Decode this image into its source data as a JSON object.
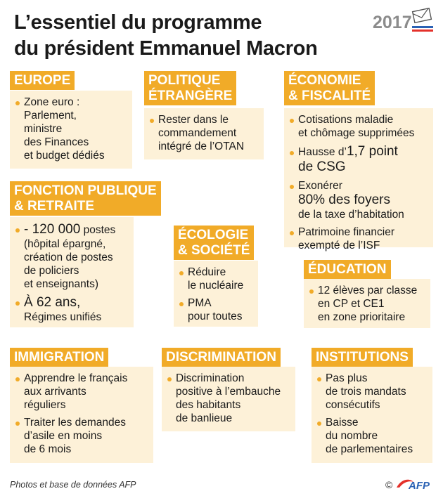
{
  "title": {
    "line1": "L’essentiel du programme",
    "line2": "du président Emmanuel Macron"
  },
  "logo": {
    "year": "2017"
  },
  "europe": {
    "header": "EUROPE",
    "items": [
      "Zone euro :",
      "Parlement,",
      "ministre",
      "des Finances",
      "et budget dédiés"
    ]
  },
  "politique": {
    "header_l1": "POLITIQUE",
    "header_l2": "ÉTRANGÈRE",
    "items": [
      "Rester dans le",
      "commandement",
      "intégré de l’OTAN"
    ]
  },
  "economie": {
    "header_l1": "ÉCONOMIE",
    "header_l2": "& FISCALITÉ",
    "item1": [
      "Cotisations maladie",
      "et chômage supprimées"
    ],
    "item2_small": "Hausse d’",
    "item2_big": "1,7 point",
    "item2_l2": "de CSG",
    "item3_l1": "Exonérer",
    "item3_big": "80% des foyers",
    "item3_l3": "de la taxe d’habitation",
    "item4": [
      "Patrimoine financier",
      "exempté de l’ISF"
    ]
  },
  "fonction": {
    "header_l1": "FONCTION PUBLIQUE",
    "header_l2": "& RETRAITE",
    "item1_big": "- 120 000",
    "item1_small": " postes",
    "item1_rest": [
      "(hôpital épargné,",
      "création de postes",
      "de policiers",
      "et enseignants)"
    ],
    "item2_big": "À 62 ans,",
    "item2_l2": "Régimes unifiés"
  },
  "ecologie": {
    "header_l1": "ÉCOLOGIE",
    "header_l2": "& SOCIÉTÉ",
    "item1": [
      "Réduire",
      "le nucléaire"
    ],
    "item2": [
      "PMA",
      "pour toutes"
    ]
  },
  "education": {
    "header": "ÉDUCATION",
    "items": [
      "12 élèves par classe",
      "en CP et CE1",
      "en zone prioritaire"
    ]
  },
  "immigration": {
    "header": "IMMIGRATION",
    "item1": [
      "Apprendre le français",
      "aux arrivants",
      "réguliers"
    ],
    "item2": [
      "Traiter les demandes",
      "d’asile en moins",
      "de 6 mois"
    ]
  },
  "discrimination": {
    "header": "DISCRIMINATION",
    "items": [
      "Discrimination",
      "positive à l’embauche",
      "des habitants",
      "de banlieue"
    ]
  },
  "institutions": {
    "header": "INSTITUTIONS",
    "item1": [
      "Pas plus",
      "de trois mandats",
      "consécutifs"
    ],
    "item2": [
      "Baisse",
      "du nombre",
      "de parlementaires"
    ]
  },
  "footer": {
    "source": "Photos et base de données AFP",
    "copyright": "©",
    "brand": "AFP"
  },
  "colors": {
    "header_bg": "#f1ab28",
    "box_bg": "#fdf1d8",
    "text": "#1a1a1a",
    "afp_blue": "#2b62b4",
    "flag_red": "#e4312b"
  }
}
